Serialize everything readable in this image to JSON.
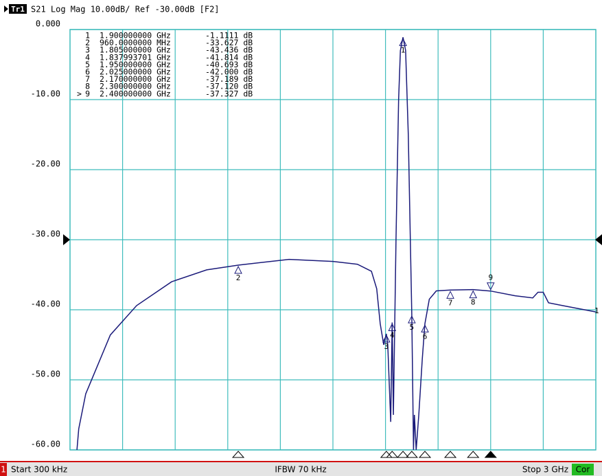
{
  "trace_label": "Tr1",
  "chart_data": {
    "type": "line",
    "title": "S21 Log Mag 10.00dB/ Ref -30.00dB [F2]",
    "color": "#1a1a7a",
    "x": [
      0.04,
      0.05,
      0.09,
      0.23,
      0.38,
      0.58,
      0.78,
      0.96,
      1.25,
      1.5,
      1.64,
      1.72,
      1.75,
      1.77,
      1.79,
      1.805,
      1.813,
      1.83,
      1.837993701,
      1.845,
      1.86,
      1.875,
      1.885,
      1.9,
      1.915,
      1.93,
      1.95,
      1.96,
      1.965,
      1.975,
      1.99,
      2.01,
      2.025,
      2.05,
      2.09,
      2.17,
      2.3,
      2.4,
      2.54,
      2.64,
      2.67,
      2.7,
      2.73,
      2.81,
      3
    ],
    "values": [
      -60,
      -57,
      -52,
      -43.6,
      -39.4,
      -36,
      -34.3,
      -33.627,
      -32.8,
      -33.1,
      -33.5,
      -34.5,
      -37,
      -42,
      -45,
      -43.436,
      -45,
      -56,
      -41.814,
      -55,
      -30,
      -10,
      -3,
      -1.1111,
      -3,
      -15,
      -40.693,
      -60,
      -55,
      -60,
      -55,
      -47,
      -42,
      -38.5,
      -37.3,
      -37.189,
      -37.12,
      -37.327,
      -38,
      -38.3,
      -37.5,
      -37.5,
      -39,
      -39.4,
      -40.3
    ],
    "xlim": [
      0.0003,
      3
    ],
    "ylim": [
      -60,
      0
    ],
    "yticks": [
      {
        "value": 0,
        "label": "0.000"
      },
      {
        "value": -10,
        "label": "-10.00"
      },
      {
        "value": -20,
        "label": "-20.00"
      },
      {
        "value": -30,
        "label": "-30.00"
      },
      {
        "value": -40,
        "label": "-40.00"
      },
      {
        "value": -50,
        "label": "-50.00"
      },
      {
        "value": -60,
        "label": "-60.00"
      }
    ],
    "grid": true,
    "ref_level": -30,
    "end_label": "1",
    "markers": [
      {
        "id": "1",
        "x": 1.9,
        "y": -1.1111,
        "x_label": "1.900000000 GHz",
        "y_label": "-1.1111 dB"
      },
      {
        "id": "2",
        "x": 0.96,
        "y": -33.627,
        "x_label": "960.0000000 MHz",
        "y_label": "-33.627 dB"
      },
      {
        "id": "3",
        "x": 1.805,
        "y": -43.436,
        "x_label": "1.805000000 GHz",
        "y_label": "-43.436 dB"
      },
      {
        "id": "4",
        "x": 1.837993701,
        "y": -41.814,
        "x_label": "1.837993701 GHz",
        "y_label": "-41.814 dB"
      },
      {
        "id": "5",
        "x": 1.95,
        "y": -40.693,
        "x_label": "1.950000000 GHz",
        "y_label": "-40.693 dB"
      },
      {
        "id": "6",
        "x": 2.025,
        "y": -42.0,
        "x_label": "2.025000000 GHz",
        "y_label": "-42.000 dB"
      },
      {
        "id": "7",
        "x": 2.17,
        "y": -37.189,
        "x_label": "2.170000000 GHz",
        "y_label": "-37.189 dB"
      },
      {
        "id": "8",
        "x": 2.3,
        "y": -37.12,
        "x_label": "2.300000000 GHz",
        "y_label": "-37.120 dB"
      },
      {
        "id": "9",
        "x": 2.4,
        "y": -37.327,
        "x_label": "2.400000000 GHz",
        "y_label": "-37.327 dB",
        "prefix": ">"
      }
    ]
  },
  "status_bar": {
    "channel": "1",
    "start": "Start 300 kHz",
    "ifbw": "IFBW 70 kHz",
    "stop": "Stop 3 GHz",
    "correction": "Cor"
  }
}
